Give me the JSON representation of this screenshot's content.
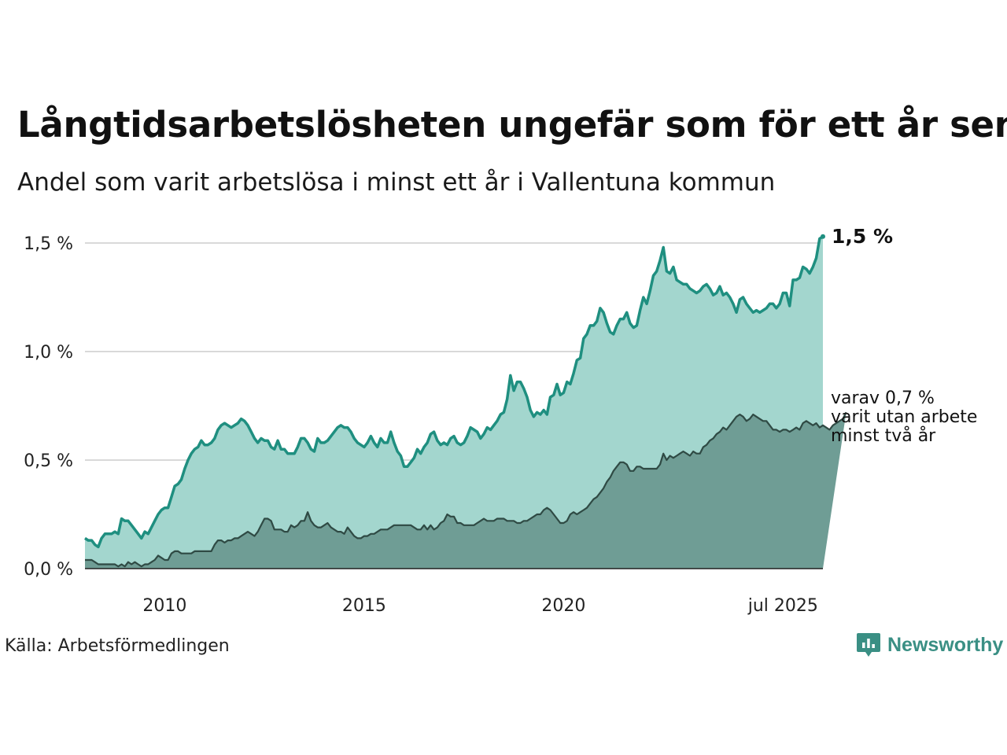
{
  "title": "Långtidsarbetslösheten ungefär som för ett år sen",
  "subtitle": "Andel som varit arbetslösa i minst ett år i Vallentuna kommun",
  "source": "Källa: Arbetsförmedlingen",
  "brand": "Newsworthy",
  "colors": {
    "series_total_line": "#1f8f80",
    "series_total_fill": "#a3d6ce",
    "series_long_line": "#2f4a44",
    "series_long_fill": "#6f9d95",
    "grid": "#d9d9d9",
    "brand": "#3a8f84"
  },
  "chart_data": {
    "type": "area",
    "x_start": "2008-01",
    "x_end": "2025-07",
    "frequency": "monthly",
    "ylim": [
      0,
      1.5
    ],
    "y_ticks": [
      "0,0 %",
      "0,5 %",
      "1,0 %",
      "1,5 %"
    ],
    "x_ticks": [
      "2010",
      "2015",
      "2020",
      "jul 2025"
    ],
    "grid": "horizontal",
    "last_value_label": "1,5 %",
    "annotation": [
      "varav 0,7 %",
      "varit utan arbete",
      "minst två år"
    ],
    "series": [
      {
        "values": [
          0.14,
          0.13,
          0.13,
          0.11,
          0.1,
          0.14,
          0.16,
          0.16,
          0.16,
          0.17,
          0.16,
          0.23,
          0.22,
          0.22,
          0.2,
          0.18,
          0.16,
          0.14,
          0.17,
          0.16,
          0.19,
          0.22,
          0.25,
          0.27,
          0.28,
          0.28,
          0.33,
          0.38,
          0.39,
          0.41,
          0.46,
          0.5,
          0.53,
          0.55,
          0.56,
          0.59,
          0.57,
          0.57,
          0.58,
          0.6,
          0.64,
          0.66,
          0.67,
          0.66,
          0.65,
          0.66,
          0.67,
          0.69,
          0.68,
          0.66,
          0.63,
          0.6,
          0.58,
          0.6,
          0.59,
          0.59,
          0.56,
          0.55,
          0.59,
          0.55,
          0.55,
          0.53,
          0.53,
          0.53,
          0.56,
          0.6,
          0.6,
          0.58,
          0.55,
          0.54,
          0.6,
          0.58,
          0.58,
          0.59,
          0.61,
          0.63,
          0.65,
          0.66,
          0.65,
          0.65,
          0.63,
          0.6,
          0.58,
          0.57,
          0.56,
          0.58,
          0.61,
          0.58,
          0.56,
          0.6,
          0.58,
          0.58,
          0.63,
          0.58,
          0.54,
          0.52,
          0.47,
          0.47,
          0.49,
          0.51,
          0.55,
          0.53,
          0.56,
          0.58,
          0.62,
          0.63,
          0.59,
          0.57,
          0.58,
          0.57,
          0.6,
          0.61,
          0.58,
          0.57,
          0.58,
          0.61,
          0.65,
          0.64,
          0.63,
          0.6,
          0.62,
          0.65,
          0.64,
          0.66,
          0.68,
          0.71,
          0.72,
          0.78,
          0.89,
          0.82,
          0.86,
          0.86,
          0.83,
          0.79,
          0.73,
          0.7,
          0.72,
          0.71,
          0.73,
          0.71,
          0.79,
          0.8,
          0.85,
          0.8,
          0.81,
          0.86,
          0.85,
          0.9,
          0.96,
          0.97,
          1.06,
          1.08,
          1.12,
          1.12,
          1.14,
          1.2,
          1.18,
          1.13,
          1.09,
          1.08,
          1.12,
          1.15,
          1.15,
          1.18,
          1.13,
          1.11,
          1.12,
          1.19,
          1.25,
          1.22,
          1.28,
          1.35,
          1.37,
          1.42,
          1.48,
          1.37,
          1.36,
          1.39,
          1.33,
          1.32,
          1.31,
          1.31,
          1.29,
          1.28,
          1.27,
          1.28,
          1.3,
          1.31,
          1.29,
          1.26,
          1.27,
          1.3,
          1.26,
          1.27,
          1.25,
          1.22,
          1.18,
          1.24,
          1.25,
          1.22,
          1.2,
          1.18,
          1.19,
          1.18,
          1.19,
          1.2,
          1.22,
          1.22,
          1.2,
          1.22,
          1.27,
          1.27,
          1.21,
          1.33,
          1.33,
          1.34,
          1.39,
          1.38,
          1.36,
          1.39,
          1.43,
          1.52,
          1.53
        ]
      },
      {
        "values": [
          0.04,
          0.04,
          0.04,
          0.03,
          0.02,
          0.02,
          0.02,
          0.02,
          0.02,
          0.02,
          0.01,
          0.02,
          0.01,
          0.03,
          0.02,
          0.03,
          0.02,
          0.01,
          0.02,
          0.02,
          0.03,
          0.04,
          0.06,
          0.05,
          0.04,
          0.04,
          0.07,
          0.08,
          0.08,
          0.07,
          0.07,
          0.07,
          0.07,
          0.08,
          0.08,
          0.08,
          0.08,
          0.08,
          0.08,
          0.11,
          0.13,
          0.13,
          0.12,
          0.13,
          0.13,
          0.14,
          0.14,
          0.15,
          0.16,
          0.17,
          0.16,
          0.15,
          0.17,
          0.2,
          0.23,
          0.23,
          0.22,
          0.18,
          0.18,
          0.18,
          0.17,
          0.17,
          0.2,
          0.19,
          0.2,
          0.22,
          0.22,
          0.26,
          0.22,
          0.2,
          0.19,
          0.19,
          0.2,
          0.21,
          0.19,
          0.18,
          0.17,
          0.17,
          0.16,
          0.19,
          0.17,
          0.15,
          0.14,
          0.14,
          0.15,
          0.15,
          0.16,
          0.16,
          0.17,
          0.18,
          0.18,
          0.18,
          0.19,
          0.2,
          0.2,
          0.2,
          0.2,
          0.2,
          0.2,
          0.19,
          0.18,
          0.18,
          0.2,
          0.18,
          0.2,
          0.18,
          0.19,
          0.21,
          0.22,
          0.25,
          0.24,
          0.24,
          0.21,
          0.21,
          0.2,
          0.2,
          0.2,
          0.2,
          0.21,
          0.22,
          0.23,
          0.22,
          0.22,
          0.22,
          0.23,
          0.23,
          0.23,
          0.22,
          0.22,
          0.22,
          0.21,
          0.21,
          0.22,
          0.22,
          0.23,
          0.24,
          0.25,
          0.25,
          0.27,
          0.28,
          0.27,
          0.25,
          0.23,
          0.21,
          0.21,
          0.22,
          0.25,
          0.26,
          0.25,
          0.26,
          0.27,
          0.28,
          0.3,
          0.32,
          0.33,
          0.35,
          0.37,
          0.4,
          0.42,
          0.45,
          0.47,
          0.49,
          0.49,
          0.48,
          0.45,
          0.45,
          0.47,
          0.47,
          0.46,
          0.46,
          0.46,
          0.46,
          0.46,
          0.48,
          0.53,
          0.5,
          0.52,
          0.51,
          0.52,
          0.53,
          0.54,
          0.53,
          0.52,
          0.54,
          0.53,
          0.53,
          0.56,
          0.57,
          0.59,
          0.6,
          0.62,
          0.63,
          0.65,
          0.64,
          0.66,
          0.68,
          0.7,
          0.71,
          0.7,
          0.68,
          0.69,
          0.71,
          0.7,
          0.69,
          0.68,
          0.68,
          0.66,
          0.64,
          0.64,
          0.63,
          0.64,
          0.64,
          0.63,
          0.64,
          0.65,
          0.64,
          0.67,
          0.68,
          0.67,
          0.66,
          0.67,
          0.65,
          0.66,
          0.65,
          0.64,
          0.66,
          0.67,
          0.68,
          0.69,
          0.72
        ]
      }
    ]
  }
}
